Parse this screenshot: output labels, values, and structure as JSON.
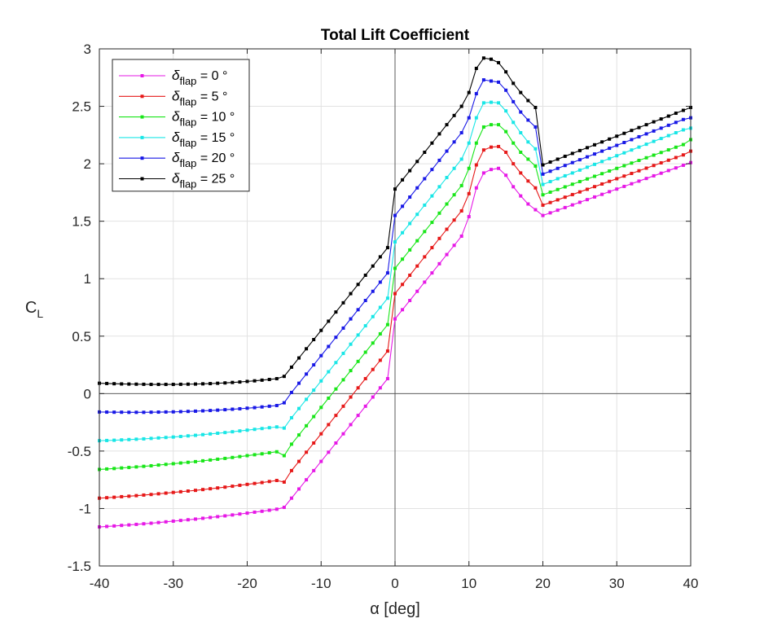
{
  "chart_data": {
    "type": "line",
    "title": "Total Lift Coefficient",
    "xlabel": "α [deg]",
    "ylabel": "C",
    "ylabel_sub": "L",
    "xlim": [
      -40,
      40
    ],
    "ylim": [
      -1.5,
      3
    ],
    "xticks": [
      -40,
      -30,
      -20,
      -10,
      0,
      10,
      20,
      30,
      40
    ],
    "yticks": [
      -1.5,
      -1,
      -0.5,
      0,
      0.5,
      1,
      1.5,
      2,
      2.5,
      3
    ],
    "xtick_labels": [
      "-40",
      "-30",
      "-20",
      "-10",
      "0",
      "10",
      "20",
      "30",
      "40"
    ],
    "ytick_labels": [
      "-1.5",
      "-1",
      "-0.5",
      "0",
      "0.5",
      "1",
      "1.5",
      "2",
      "2.5",
      "3"
    ],
    "grid": true,
    "zero_lines": true,
    "legend_position": "top-left",
    "x": [
      -40,
      -39,
      -38,
      -37,
      -36,
      -35,
      -34,
      -33,
      -32,
      -31,
      -30,
      -29,
      -28,
      -27,
      -26,
      -25,
      -24,
      -23,
      -22,
      -21,
      -20,
      -19,
      -18,
      -17,
      -16,
      -15,
      -14,
      -13,
      -12,
      -11,
      -10,
      -9,
      -8,
      -7,
      -6,
      -5,
      -4,
      -3,
      -2,
      -1,
      0,
      1,
      2,
      3,
      4,
      5,
      6,
      7,
      8,
      9,
      10,
      11,
      12,
      13,
      14,
      15,
      16,
      17,
      18,
      19,
      20,
      21,
      22,
      23,
      24,
      25,
      26,
      27,
      28,
      29,
      30,
      31,
      32,
      33,
      34,
      35,
      36,
      37,
      38,
      39,
      40
    ],
    "series": [
      {
        "name": "δ",
        "name_sub": "flap",
        "name_suffix": " = 0 °",
        "color": "#e619e6",
        "values": [
          -1.16,
          -1.156,
          -1.152,
          -1.147,
          -1.143,
          -1.138,
          -1.133,
          -1.128,
          -1.122,
          -1.116,
          -1.11,
          -1.104,
          -1.098,
          -1.092,
          -1.085,
          -1.078,
          -1.071,
          -1.064,
          -1.056,
          -1.048,
          -1.04,
          -1.032,
          -1.024,
          -1.015,
          -1.006,
          -0.99,
          -0.91,
          -0.83,
          -0.75,
          -0.67,
          -0.59,
          -0.51,
          -0.43,
          -0.35,
          -0.27,
          -0.19,
          -0.11,
          -0.03,
          0.05,
          0.13,
          0.65,
          0.73,
          0.81,
          0.89,
          0.97,
          1.05,
          1.13,
          1.21,
          1.29,
          1.37,
          1.54,
          1.79,
          1.92,
          1.95,
          1.96,
          1.9,
          1.8,
          1.72,
          1.65,
          1.6,
          1.55,
          1.573,
          1.596,
          1.619,
          1.642,
          1.665,
          1.688,
          1.711,
          1.734,
          1.757,
          1.78,
          1.803,
          1.826,
          1.849,
          1.872,
          1.895,
          1.918,
          1.941,
          1.964,
          1.987,
          2.01
        ]
      },
      {
        "name": "δ",
        "name_sub": "flap",
        "name_suffix": " = 5 °",
        "color": "#e61919",
        "values": [
          -0.91,
          -0.906,
          -0.902,
          -0.897,
          -0.893,
          -0.888,
          -0.883,
          -0.878,
          -0.872,
          -0.866,
          -0.86,
          -0.854,
          -0.848,
          -0.842,
          -0.835,
          -0.828,
          -0.821,
          -0.814,
          -0.806,
          -0.798,
          -0.79,
          -0.782,
          -0.774,
          -0.765,
          -0.756,
          -0.77,
          -0.67,
          -0.59,
          -0.51,
          -0.43,
          -0.35,
          -0.27,
          -0.19,
          -0.11,
          -0.03,
          0.05,
          0.13,
          0.21,
          0.29,
          0.37,
          0.87,
          0.95,
          1.03,
          1.11,
          1.19,
          1.27,
          1.35,
          1.43,
          1.51,
          1.59,
          1.74,
          1.99,
          2.12,
          2.145,
          2.15,
          2.1,
          2.0,
          1.92,
          1.85,
          1.79,
          1.64,
          1.663,
          1.686,
          1.709,
          1.732,
          1.755,
          1.778,
          1.801,
          1.824,
          1.847,
          1.87,
          1.893,
          1.916,
          1.939,
          1.962,
          1.985,
          2.008,
          2.031,
          2.054,
          2.077,
          2.11
        ]
      },
      {
        "name": "δ",
        "name_sub": "flap",
        "name_suffix": " = 10 °",
        "color": "#19e619",
        "values": [
          -0.66,
          -0.656,
          -0.652,
          -0.647,
          -0.643,
          -0.638,
          -0.633,
          -0.628,
          -0.622,
          -0.616,
          -0.61,
          -0.604,
          -0.598,
          -0.592,
          -0.585,
          -0.578,
          -0.571,
          -0.564,
          -0.556,
          -0.548,
          -0.54,
          -0.532,
          -0.524,
          -0.515,
          -0.506,
          -0.54,
          -0.44,
          -0.36,
          -0.28,
          -0.2,
          -0.12,
          -0.04,
          0.04,
          0.12,
          0.2,
          0.28,
          0.36,
          0.44,
          0.52,
          0.6,
          1.09,
          1.17,
          1.25,
          1.33,
          1.41,
          1.49,
          1.57,
          1.65,
          1.73,
          1.81,
          1.96,
          2.18,
          2.32,
          2.34,
          2.34,
          2.28,
          2.18,
          2.1,
          2.04,
          1.98,
          1.73,
          1.753,
          1.776,
          1.799,
          1.822,
          1.845,
          1.868,
          1.891,
          1.914,
          1.937,
          1.96,
          1.983,
          2.006,
          2.029,
          2.052,
          2.075,
          2.098,
          2.121,
          2.144,
          2.167,
          2.21
        ]
      },
      {
        "name": "δ",
        "name_sub": "flap",
        "name_suffix": " = 15 °",
        "color": "#19e6e6",
        "values": [
          -0.41,
          -0.408,
          -0.406,
          -0.403,
          -0.4,
          -0.397,
          -0.394,
          -0.39,
          -0.386,
          -0.382,
          -0.378,
          -0.373,
          -0.368,
          -0.363,
          -0.357,
          -0.351,
          -0.345,
          -0.339,
          -0.332,
          -0.325,
          -0.318,
          -0.311,
          -0.304,
          -0.297,
          -0.29,
          -0.3,
          -0.21,
          -0.13,
          -0.05,
          0.03,
          0.11,
          0.19,
          0.27,
          0.35,
          0.43,
          0.51,
          0.59,
          0.67,
          0.75,
          0.83,
          1.32,
          1.4,
          1.48,
          1.56,
          1.64,
          1.72,
          1.8,
          1.88,
          1.96,
          2.04,
          2.18,
          2.4,
          2.53,
          2.535,
          2.53,
          2.46,
          2.36,
          2.27,
          2.19,
          2.13,
          1.82,
          1.845,
          1.87,
          1.895,
          1.92,
          1.945,
          1.97,
          1.995,
          2.02,
          2.045,
          2.07,
          2.095,
          2.12,
          2.145,
          2.17,
          2.195,
          2.22,
          2.245,
          2.27,
          2.295,
          2.31
        ]
      },
      {
        "name": "δ",
        "name_sub": "flap",
        "name_suffix": " = 20 °",
        "color": "#1919e6",
        "values": [
          -0.16,
          -0.161,
          -0.162,
          -0.162,
          -0.163,
          -0.163,
          -0.163,
          -0.162,
          -0.161,
          -0.16,
          -0.159,
          -0.157,
          -0.155,
          -0.153,
          -0.15,
          -0.147,
          -0.144,
          -0.14,
          -0.136,
          -0.132,
          -0.127,
          -0.122,
          -0.116,
          -0.11,
          -0.104,
          -0.08,
          0.01,
          0.09,
          0.17,
          0.25,
          0.33,
          0.41,
          0.49,
          0.57,
          0.65,
          0.73,
          0.81,
          0.89,
          0.97,
          1.05,
          1.55,
          1.63,
          1.71,
          1.79,
          1.87,
          1.95,
          2.03,
          2.11,
          2.19,
          2.27,
          2.4,
          2.61,
          2.73,
          2.72,
          2.71,
          2.64,
          2.54,
          2.45,
          2.38,
          2.32,
          1.91,
          1.935,
          1.96,
          1.985,
          2.01,
          2.035,
          2.06,
          2.085,
          2.11,
          2.135,
          2.16,
          2.185,
          2.21,
          2.235,
          2.26,
          2.285,
          2.31,
          2.335,
          2.36,
          2.385,
          2.4
        ]
      },
      {
        "name": "δ",
        "name_sub": "flap",
        "name_suffix": " = 25 °",
        "color": "#000000",
        "values": [
          0.09,
          0.088,
          0.086,
          0.084,
          0.083,
          0.082,
          0.081,
          0.08,
          0.08,
          0.08,
          0.08,
          0.081,
          0.082,
          0.083,
          0.085,
          0.087,
          0.09,
          0.093,
          0.097,
          0.101,
          0.106,
          0.111,
          0.117,
          0.123,
          0.13,
          0.15,
          0.23,
          0.31,
          0.39,
          0.47,
          0.55,
          0.63,
          0.71,
          0.79,
          0.87,
          0.95,
          1.03,
          1.11,
          1.19,
          1.27,
          1.78,
          1.86,
          1.94,
          2.02,
          2.1,
          2.18,
          2.26,
          2.34,
          2.42,
          2.5,
          2.62,
          2.83,
          2.92,
          2.91,
          2.88,
          2.8,
          2.7,
          2.62,
          2.55,
          2.49,
          1.99,
          2.015,
          2.04,
          2.065,
          2.09,
          2.115,
          2.14,
          2.165,
          2.19,
          2.215,
          2.24,
          2.265,
          2.29,
          2.315,
          2.34,
          2.365,
          2.39,
          2.415,
          2.44,
          2.465,
          2.49
        ]
      }
    ]
  }
}
